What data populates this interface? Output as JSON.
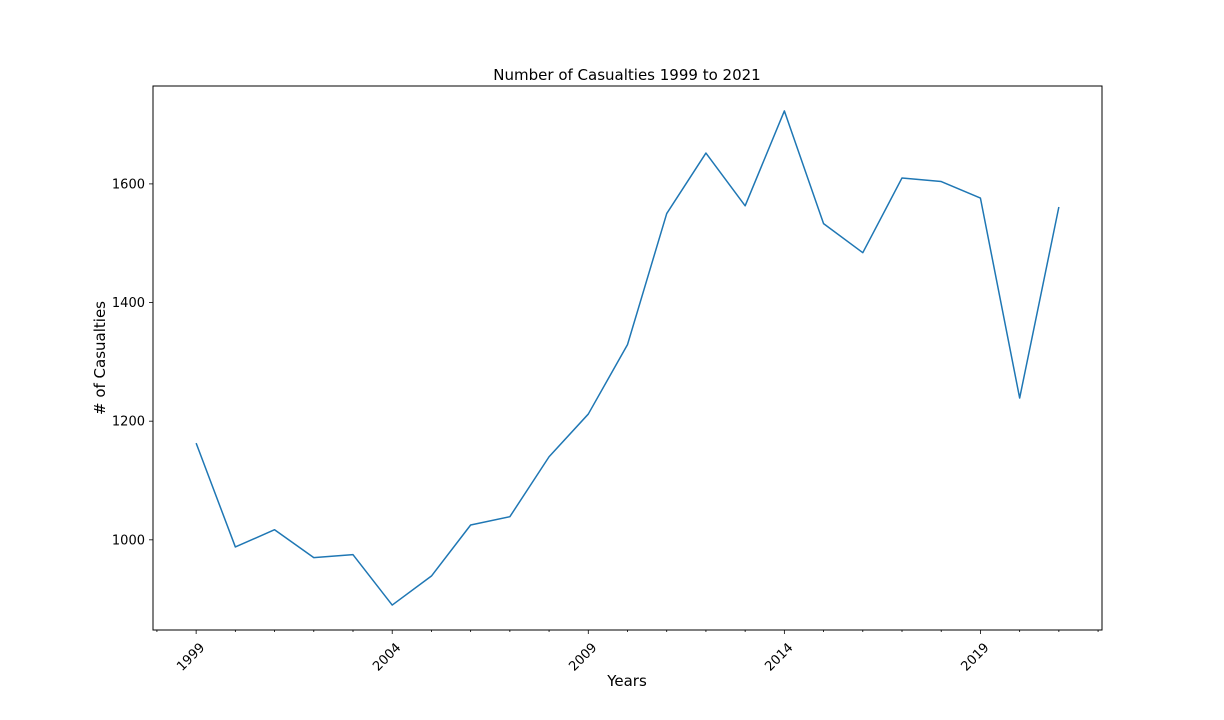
{
  "chart_data": {
    "type": "line",
    "title": "Number of Casualties 1999 to 2021",
    "xlabel": "Years",
    "ylabel": "# of Casualties",
    "x": [
      1999,
      2000,
      2001,
      2002,
      2003,
      2004,
      2005,
      2006,
      2007,
      2008,
      2009,
      2010,
      2011,
      2012,
      2013,
      2014,
      2015,
      2016,
      2017,
      2018,
      2019,
      2020,
      2021
    ],
    "series": [
      {
        "name": "Casualties",
        "color": "#1f77b4",
        "values": [
          1163,
          988,
          1017,
          970,
          975,
          890,
          939,
          1025,
          1039,
          1140,
          1212,
          1329,
          1550,
          1652,
          1563,
          1723,
          1533,
          1484,
          1610,
          1604,
          1576,
          1239,
          1561
        ]
      }
    ],
    "xlim": [
      1997.9,
      2022.1
    ],
    "ylim": [
      848,
      1765
    ],
    "x_major_ticks": [
      1999,
      2004,
      2009,
      2014,
      2019
    ],
    "x_tick_labels": [
      "1999",
      "2004",
      "2009",
      "2014",
      "2019"
    ],
    "x_minor_ticks": [
      1998,
      2000,
      2001,
      2002,
      2003,
      2005,
      2006,
      2007,
      2008,
      2010,
      2011,
      2012,
      2013,
      2015,
      2016,
      2017,
      2018,
      2020,
      2021,
      2022
    ],
    "y_ticks": [
      1000,
      1200,
      1400,
      1600
    ],
    "y_tick_labels": [
      "1000",
      "1200",
      "1400",
      "1600"
    ],
    "grid": false
  }
}
